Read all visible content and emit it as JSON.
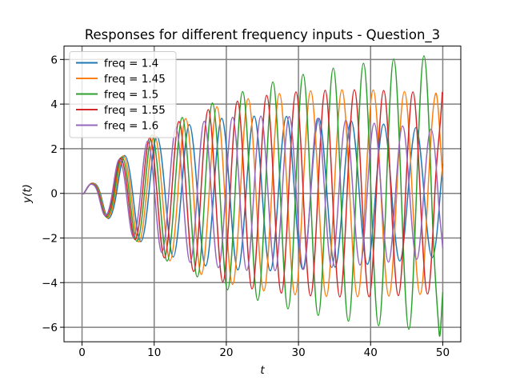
{
  "chart_data": {
    "type": "line",
    "title": "Responses for different frequency inputs - Question_3",
    "xlabel": "t",
    "ylabel": "y(t)",
    "xlim": [
      -2.5,
      52.5
    ],
    "ylim": [
      -6.65,
      6.6
    ],
    "xticks": [
      0,
      10,
      20,
      30,
      40,
      50
    ],
    "yticks": [
      {
        "value": -6,
        "label": "−6"
      },
      {
        "value": -4,
        "label": "−4"
      },
      {
        "value": -2,
        "label": "−2"
      },
      0,
      2,
      4,
      6
    ],
    "grid": true,
    "grid_color": "#808080",
    "legend": "upper-left",
    "series": [
      {
        "name": "freq = 1.4",
        "color": "#1f77b4",
        "x": [
          0,
          0.29,
          1.41,
          2.53,
          3.65,
          4.77,
          5.9,
          7.02,
          8.14,
          9.26,
          10.38,
          11.51,
          12.63,
          13.75,
          14.87,
          15.99,
          17.12,
          18.24,
          19.36,
          20.48,
          21.6,
          22.73,
          23.85,
          24.97,
          26.09,
          27.21,
          28.34,
          29.46,
          30.58,
          31.7,
          32.82,
          33.95,
          35.07,
          36.19,
          37.31,
          38.43,
          39.56,
          40.68,
          41.8,
          42.92,
          44.04,
          45.17,
          46.29,
          47.41,
          48.53,
          49.65,
          50
        ],
        "values": [
          0,
          0,
          0.46,
          0,
          -1.13,
          0,
          1.69,
          0,
          -2.16,
          0,
          2.55,
          0,
          -2.85,
          0,
          3.08,
          0,
          -3.25,
          0,
          3.36,
          0,
          -3.43,
          0,
          3.46,
          0,
          -3.47,
          0,
          3.45,
          0,
          -3.4,
          0,
          3.36,
          0,
          -3.3,
          0,
          3.24,
          0,
          -3.18,
          0,
          3.1,
          0,
          -3.03,
          0,
          2.95,
          0,
          -2.88,
          0,
          1.32
        ]
      },
      {
        "name": "freq = 1.45",
        "color": "#ff7f0e",
        "x": [
          0,
          0.28,
          1.36,
          2.44,
          3.53,
          4.61,
          5.69,
          6.78,
          7.86,
          8.94,
          10.03,
          11.11,
          12.19,
          13.28,
          14.36,
          15.44,
          16.53,
          17.61,
          18.69,
          19.77,
          20.86,
          21.94,
          23.02,
          24.11,
          25.19,
          26.28,
          27.36,
          28.44,
          29.53,
          30.61,
          31.69,
          32.78,
          33.86,
          34.94,
          36.03,
          37.11,
          38.19,
          39.28,
          40.36,
          41.44,
          42.53,
          43.61,
          44.69,
          45.77,
          46.86,
          47.94,
          49.02,
          50
        ],
        "values": [
          0,
          0,
          0.45,
          0,
          -1.1,
          0,
          1.68,
          0,
          -2.18,
          0,
          2.63,
          0,
          -3.02,
          0,
          3.35,
          0,
          -3.63,
          0,
          3.88,
          0,
          -4.08,
          0,
          4.24,
          0,
          -4.37,
          0,
          4.47,
          0,
          -4.54,
          0,
          4.59,
          0,
          -4.62,
          0,
          4.64,
          0,
          -4.63,
          0,
          4.63,
          0,
          -4.6,
          0,
          4.56,
          0,
          -4.53,
          0,
          4.48,
          0.7
        ]
      },
      {
        "name": "freq = 1.5",
        "color": "#2ca02c",
        "x": [
          0,
          0.27,
          1.31,
          2.36,
          3.41,
          4.46,
          5.5,
          6.55,
          7.6,
          8.64,
          9.69,
          10.74,
          11.79,
          12.83,
          13.88,
          14.93,
          15.97,
          17.02,
          18.07,
          19.12,
          20.16,
          21.21,
          22.26,
          23.3,
          24.35,
          25.4,
          26.45,
          27.49,
          28.54,
          29.59,
          30.64,
          31.68,
          32.73,
          33.78,
          34.82,
          35.87,
          36.92,
          37.97,
          39.01,
          40.06,
          41.11,
          42.16,
          43.2,
          44.25,
          45.3,
          46.35,
          47.39,
          48.44,
          49.49,
          50
        ],
        "values": [
          0,
          0,
          0.43,
          0,
          -1.07,
          0,
          1.63,
          0,
          -2.15,
          0,
          2.61,
          0,
          -3.03,
          0,
          3.4,
          0,
          -3.74,
          0,
          4.05,
          0,
          -4.32,
          0,
          4.56,
          0,
          -4.79,
          0,
          4.99,
          0,
          -5.17,
          0,
          5.33,
          0,
          -5.47,
          0,
          5.61,
          0,
          -5.73,
          0,
          5.83,
          0,
          -5.93,
          0,
          6.02,
          0,
          -6.09,
          0,
          6.16,
          0,
          -6.23,
          -4.43
        ]
      },
      {
        "name": "freq = 1.55",
        "color": "#d62728",
        "x": [
          0,
          0.26,
          1.27,
          2.28,
          3.3,
          4.31,
          5.33,
          6.34,
          7.35,
          8.37,
          9.38,
          10.39,
          11.41,
          12.42,
          13.43,
          14.45,
          15.46,
          16.47,
          17.49,
          18.5,
          19.51,
          20.53,
          21.54,
          22.55,
          23.57,
          24.58,
          25.59,
          26.61,
          27.62,
          28.63,
          29.65,
          30.66,
          31.67,
          32.69,
          33.7,
          34.71,
          35.73,
          36.74,
          37.75,
          38.77,
          39.78,
          40.79,
          41.81,
          42.82,
          43.84,
          44.85,
          45.86,
          46.87,
          47.89,
          48.9,
          49.92,
          50
        ],
        "values": [
          0,
          0,
          0.42,
          0,
          -1.03,
          0,
          1.58,
          0,
          -2.07,
          0,
          2.5,
          0,
          -2.89,
          0,
          3.22,
          0,
          -3.5,
          0,
          3.75,
          0,
          -3.96,
          0,
          4.13,
          0,
          -4.28,
          0,
          4.39,
          0,
          -4.47,
          0,
          4.54,
          0,
          -4.59,
          0,
          4.62,
          0,
          -4.64,
          0,
          4.64,
          0,
          -4.63,
          0,
          4.61,
          0,
          -4.58,
          0,
          4.54,
          0,
          -4.51,
          0,
          4.46,
          4.42
        ]
      },
      {
        "name": "freq = 1.6",
        "color": "#9467bd",
        "x": [
          0,
          0.25,
          1.23,
          2.21,
          3.2,
          4.18,
          5.16,
          6.14,
          7.12,
          8.1,
          9.09,
          10.07,
          11.05,
          12.03,
          13.01,
          13.99,
          14.98,
          15.96,
          16.94,
          17.92,
          18.9,
          19.89,
          20.87,
          21.85,
          22.83,
          23.81,
          24.79,
          25.78,
          26.76,
          27.74,
          28.72,
          29.7,
          30.68,
          31.67,
          32.65,
          33.63,
          34.61,
          35.59,
          36.57,
          37.56,
          38.54,
          39.52,
          40.5,
          41.48,
          42.47,
          43.45,
          44.43,
          45.41,
          46.39,
          47.37,
          48.36,
          49.34,
          50
        ],
        "values": [
          0,
          0,
          0.41,
          0,
          -1.0,
          0,
          1.52,
          0,
          -1.96,
          0,
          2.34,
          0,
          -2.65,
          0,
          2.9,
          0,
          -3.09,
          0,
          3.23,
          0,
          -3.33,
          0,
          3.41,
          0,
          -3.45,
          0,
          3.46,
          0,
          -3.46,
          0,
          3.44,
          0,
          -3.41,
          0,
          3.36,
          0,
          -3.32,
          0,
          3.27,
          0,
          -3.21,
          0,
          3.14,
          0,
          -3.08,
          0,
          3.02,
          0,
          -2.95,
          0,
          2.88,
          0,
          -2.47
        ]
      }
    ]
  }
}
